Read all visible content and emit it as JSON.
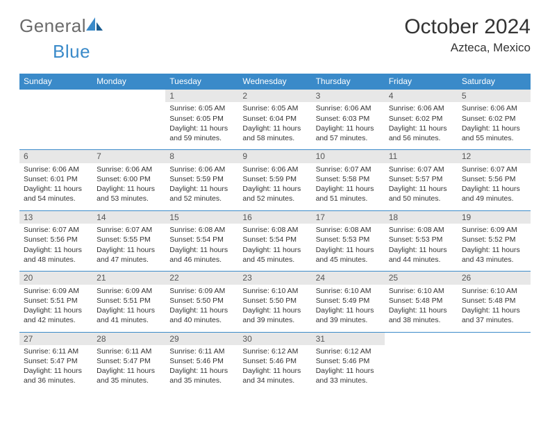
{
  "brand": {
    "part1": "General",
    "part2": "Blue"
  },
  "title": {
    "month": "October 2024",
    "location": "Azteca, Mexico"
  },
  "style": {
    "header_bg": "#3a8ac9",
    "header_text": "#ffffff",
    "daynum_bg": "#e7e7e7",
    "border_color": "#3a8ac9",
    "logo_gray": "#6b6b6b",
    "logo_blue": "#3a8ac9"
  },
  "weekdays": [
    "Sunday",
    "Monday",
    "Tuesday",
    "Wednesday",
    "Thursday",
    "Friday",
    "Saturday"
  ],
  "weeks": [
    [
      {
        "n": "",
        "sr": "",
        "ss": "",
        "dl": ""
      },
      {
        "n": "",
        "sr": "",
        "ss": "",
        "dl": ""
      },
      {
        "n": "1",
        "sr": "Sunrise: 6:05 AM",
        "ss": "Sunset: 6:05 PM",
        "dl": "Daylight: 11 hours and 59 minutes."
      },
      {
        "n": "2",
        "sr": "Sunrise: 6:05 AM",
        "ss": "Sunset: 6:04 PM",
        "dl": "Daylight: 11 hours and 58 minutes."
      },
      {
        "n": "3",
        "sr": "Sunrise: 6:06 AM",
        "ss": "Sunset: 6:03 PM",
        "dl": "Daylight: 11 hours and 57 minutes."
      },
      {
        "n": "4",
        "sr": "Sunrise: 6:06 AM",
        "ss": "Sunset: 6:02 PM",
        "dl": "Daylight: 11 hours and 56 minutes."
      },
      {
        "n": "5",
        "sr": "Sunrise: 6:06 AM",
        "ss": "Sunset: 6:02 PM",
        "dl": "Daylight: 11 hours and 55 minutes."
      }
    ],
    [
      {
        "n": "6",
        "sr": "Sunrise: 6:06 AM",
        "ss": "Sunset: 6:01 PM",
        "dl": "Daylight: 11 hours and 54 minutes."
      },
      {
        "n": "7",
        "sr": "Sunrise: 6:06 AM",
        "ss": "Sunset: 6:00 PM",
        "dl": "Daylight: 11 hours and 53 minutes."
      },
      {
        "n": "8",
        "sr": "Sunrise: 6:06 AM",
        "ss": "Sunset: 5:59 PM",
        "dl": "Daylight: 11 hours and 52 minutes."
      },
      {
        "n": "9",
        "sr": "Sunrise: 6:06 AM",
        "ss": "Sunset: 5:59 PM",
        "dl": "Daylight: 11 hours and 52 minutes."
      },
      {
        "n": "10",
        "sr": "Sunrise: 6:07 AM",
        "ss": "Sunset: 5:58 PM",
        "dl": "Daylight: 11 hours and 51 minutes."
      },
      {
        "n": "11",
        "sr": "Sunrise: 6:07 AM",
        "ss": "Sunset: 5:57 PM",
        "dl": "Daylight: 11 hours and 50 minutes."
      },
      {
        "n": "12",
        "sr": "Sunrise: 6:07 AM",
        "ss": "Sunset: 5:56 PM",
        "dl": "Daylight: 11 hours and 49 minutes."
      }
    ],
    [
      {
        "n": "13",
        "sr": "Sunrise: 6:07 AM",
        "ss": "Sunset: 5:56 PM",
        "dl": "Daylight: 11 hours and 48 minutes."
      },
      {
        "n": "14",
        "sr": "Sunrise: 6:07 AM",
        "ss": "Sunset: 5:55 PM",
        "dl": "Daylight: 11 hours and 47 minutes."
      },
      {
        "n": "15",
        "sr": "Sunrise: 6:08 AM",
        "ss": "Sunset: 5:54 PM",
        "dl": "Daylight: 11 hours and 46 minutes."
      },
      {
        "n": "16",
        "sr": "Sunrise: 6:08 AM",
        "ss": "Sunset: 5:54 PM",
        "dl": "Daylight: 11 hours and 45 minutes."
      },
      {
        "n": "17",
        "sr": "Sunrise: 6:08 AM",
        "ss": "Sunset: 5:53 PM",
        "dl": "Daylight: 11 hours and 45 minutes."
      },
      {
        "n": "18",
        "sr": "Sunrise: 6:08 AM",
        "ss": "Sunset: 5:53 PM",
        "dl": "Daylight: 11 hours and 44 minutes."
      },
      {
        "n": "19",
        "sr": "Sunrise: 6:09 AM",
        "ss": "Sunset: 5:52 PM",
        "dl": "Daylight: 11 hours and 43 minutes."
      }
    ],
    [
      {
        "n": "20",
        "sr": "Sunrise: 6:09 AM",
        "ss": "Sunset: 5:51 PM",
        "dl": "Daylight: 11 hours and 42 minutes."
      },
      {
        "n": "21",
        "sr": "Sunrise: 6:09 AM",
        "ss": "Sunset: 5:51 PM",
        "dl": "Daylight: 11 hours and 41 minutes."
      },
      {
        "n": "22",
        "sr": "Sunrise: 6:09 AM",
        "ss": "Sunset: 5:50 PM",
        "dl": "Daylight: 11 hours and 40 minutes."
      },
      {
        "n": "23",
        "sr": "Sunrise: 6:10 AM",
        "ss": "Sunset: 5:50 PM",
        "dl": "Daylight: 11 hours and 39 minutes."
      },
      {
        "n": "24",
        "sr": "Sunrise: 6:10 AM",
        "ss": "Sunset: 5:49 PM",
        "dl": "Daylight: 11 hours and 39 minutes."
      },
      {
        "n": "25",
        "sr": "Sunrise: 6:10 AM",
        "ss": "Sunset: 5:48 PM",
        "dl": "Daylight: 11 hours and 38 minutes."
      },
      {
        "n": "26",
        "sr": "Sunrise: 6:10 AM",
        "ss": "Sunset: 5:48 PM",
        "dl": "Daylight: 11 hours and 37 minutes."
      }
    ],
    [
      {
        "n": "27",
        "sr": "Sunrise: 6:11 AM",
        "ss": "Sunset: 5:47 PM",
        "dl": "Daylight: 11 hours and 36 minutes."
      },
      {
        "n": "28",
        "sr": "Sunrise: 6:11 AM",
        "ss": "Sunset: 5:47 PM",
        "dl": "Daylight: 11 hours and 35 minutes."
      },
      {
        "n": "29",
        "sr": "Sunrise: 6:11 AM",
        "ss": "Sunset: 5:46 PM",
        "dl": "Daylight: 11 hours and 35 minutes."
      },
      {
        "n": "30",
        "sr": "Sunrise: 6:12 AM",
        "ss": "Sunset: 5:46 PM",
        "dl": "Daylight: 11 hours and 34 minutes."
      },
      {
        "n": "31",
        "sr": "Sunrise: 6:12 AM",
        "ss": "Sunset: 5:46 PM",
        "dl": "Daylight: 11 hours and 33 minutes."
      },
      {
        "n": "",
        "sr": "",
        "ss": "",
        "dl": ""
      },
      {
        "n": "",
        "sr": "",
        "ss": "",
        "dl": ""
      }
    ]
  ]
}
